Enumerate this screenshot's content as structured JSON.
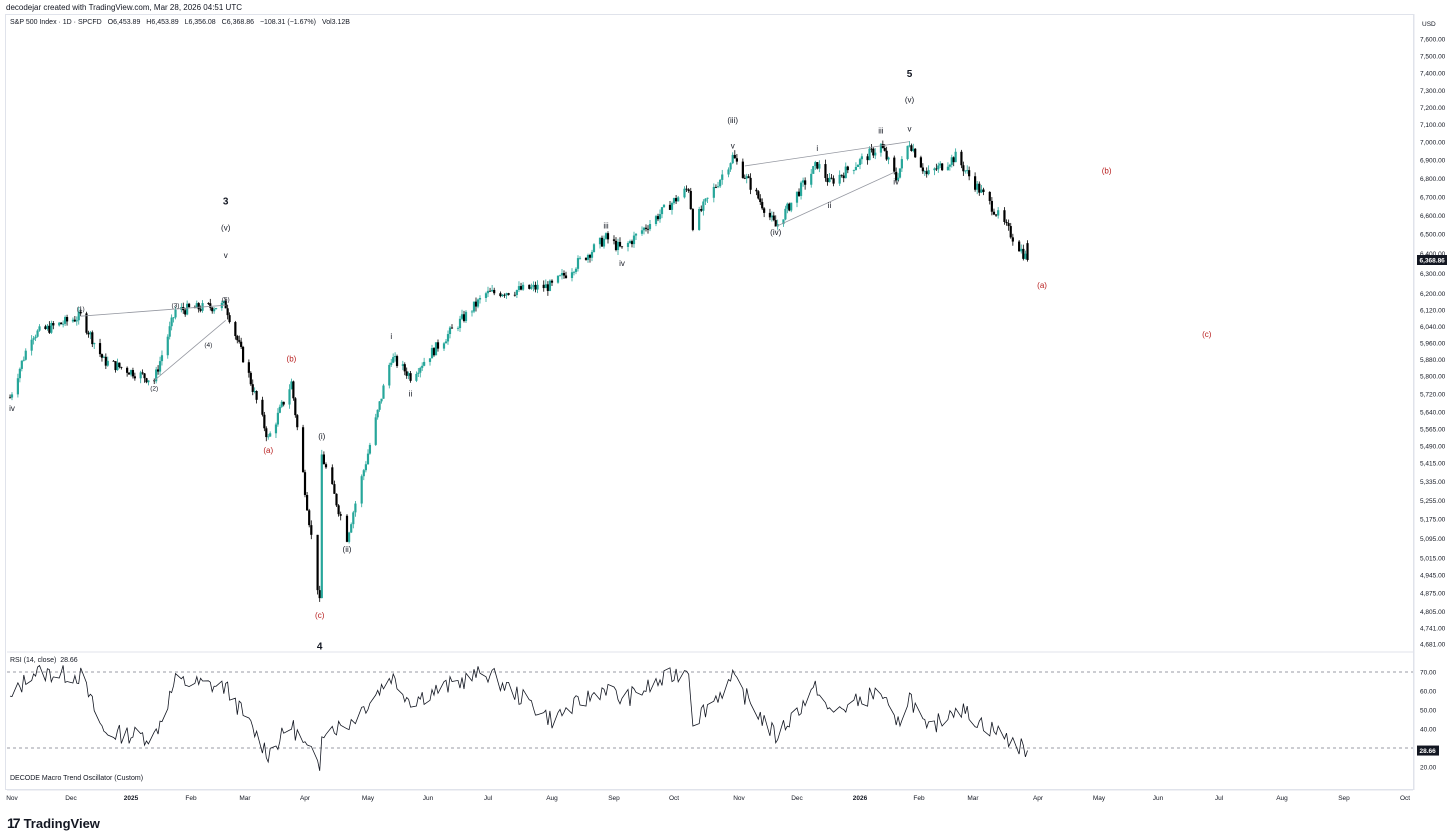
{
  "header": {
    "credit": "decodejar created with TradingView.com, Mar 28, 2026 04:51 UTC"
  },
  "legend": {
    "symbol": "S&P 500 Index · 1D · SPCFD",
    "open": "O6,453.89",
    "high": "H6,453.89",
    "low": "L6,356.08",
    "close": "C6,368.86",
    "change": "−108.31 (−1.67%)",
    "volume": "Vol3.12B"
  },
  "price_axis": {
    "currency": "USD",
    "ticks": [
      "7,600.00",
      "7,500.00",
      "7,400.00",
      "7,300.00",
      "7,200.00",
      "7,100.00",
      "7,000.00",
      "6,900.00",
      "6,800.00",
      "6,700.00",
      "6,600.00",
      "6,500.00",
      "6,400.00",
      "6,300.00",
      "6,200.00",
      "6,120.00",
      "6,040.00",
      "5,960.00",
      "5,880.00",
      "5,800.00",
      "5,720.00",
      "5,640.00",
      "5,565.00",
      "5,490.00",
      "5,415.00",
      "5,335.00",
      "5,255.00",
      "5,175.00",
      "5,095.00",
      "5,015.00",
      "4,945.00",
      "4,875.00",
      "4,805.00",
      "4,741.00",
      "4,681.00"
    ],
    "last_price_label": "6,368.86"
  },
  "rsi": {
    "label": "RSI (14, close)",
    "value": "28.66",
    "ticks": [
      "70.00",
      "60.00",
      "50.00",
      "40.00",
      "20.00"
    ],
    "last_label": "28.66"
  },
  "oscillator": {
    "label": "DECODE Macro Trend Oscillator (Custom)"
  },
  "time_axis": {
    "labels": [
      "Nov",
      "Dec",
      "2025",
      "Feb",
      "Mar",
      "Apr",
      "May",
      "Jun",
      "Jul",
      "Aug",
      "Sep",
      "Oct",
      "Nov",
      "Dec",
      "2026",
      "Feb",
      "Mar",
      "Apr",
      "May",
      "Jun",
      "Jul",
      "Aug",
      "Sep",
      "Oct"
    ]
  },
  "wave_labels": [
    "iv",
    "(1)",
    "(2)",
    "(3)",
    "(4)",
    "(5)",
    "v",
    "(v)",
    "3",
    "(b)",
    "(a)",
    "(i)",
    "(ii)",
    "(c)",
    "4",
    "i",
    "ii",
    "iii",
    "iv",
    "v",
    "(iii)",
    "(iv)",
    "i",
    "ii",
    "iii",
    "iv",
    "v",
    "(v)",
    "5",
    "(a)",
    "(b)",
    "(c)"
  ],
  "colors": {
    "up": "#26a69a",
    "down": "#000000",
    "corrective": "#b71c1c",
    "grid": "#e0e3eb",
    "text": "#131722"
  },
  "footer": {
    "brand": "TradingView"
  },
  "chart_data": {
    "type": "candlestick",
    "title": "S&P 500 Index · 1D · SPCFD",
    "ylabel": "USD",
    "ylim": [
      4681,
      7600
    ],
    "x_range": [
      "2024-11-01",
      "2026-10-15"
    ],
    "trend_path": [
      [
        "2024-10-31",
        5705
      ],
      [
        "2024-11-11",
        6000
      ],
      [
        "2024-12-06",
        6090
      ],
      [
        "2024-12-18",
        5872
      ],
      [
        "2025-01-13",
        5780
      ],
      [
        "2025-01-24",
        6118
      ],
      [
        "2025-02-19",
        6144
      ],
      [
        "2025-03-13",
        5520
      ],
      [
        "2025-03-25",
        5770
      ],
      [
        "2025-04-08",
        4835
      ],
      [
        "2025-04-09",
        5450
      ],
      [
        "2025-04-21",
        5100
      ],
      [
        "2025-05-13",
        5890
      ],
      [
        "2025-05-23",
        5800
      ],
      [
        "2025-06-30",
        6200
      ],
      [
        "2025-08-01",
        6240
      ],
      [
        "2025-08-28",
        6480
      ],
      [
        "2025-09-05",
        6420
      ],
      [
        "2025-10-08",
        6750
      ],
      [
        "2025-10-10",
        6550
      ],
      [
        "2025-10-29",
        6920
      ],
      [
        "2025-11-20",
        6540
      ],
      [
        "2025-12-11",
        6880
      ],
      [
        "2025-12-17",
        6780
      ],
      [
        "2026-01-12",
        6980
      ],
      [
        "2026-01-20",
        6800
      ],
      [
        "2026-01-27",
        7002
      ],
      [
        "2026-02-05",
        6820
      ],
      [
        "2026-02-20",
        6920
      ],
      [
        "2026-03-10",
        6650
      ],
      [
        "2026-03-27",
        6369
      ]
    ],
    "last_bar": {
      "date": "2026-03-27",
      "open": 6453.89,
      "high": 6453.89,
      "low": 6356.08,
      "close": 6368.86
    },
    "rsi": {
      "period": 14,
      "last": 28.66,
      "levels": [
        70,
        30
      ],
      "path": [
        [
          "2024-10-31",
          55
        ],
        [
          "2024-11-11",
          70
        ],
        [
          "2024-12-06",
          68
        ],
        [
          "2024-12-18",
          38
        ],
        [
          "2025-01-13",
          36
        ],
        [
          "2025-01-24",
          65
        ],
        [
          "2025-02-19",
          62
        ],
        [
          "2025-03-13",
          27
        ],
        [
          "2025-03-25",
          42
        ],
        [
          "2025-04-08",
          20
        ],
        [
          "2025-04-09",
          40
        ],
        [
          "2025-04-21",
          42
        ],
        [
          "2025-05-13",
          68
        ],
        [
          "2025-05-23",
          55
        ],
        [
          "2025-06-30",
          70
        ],
        [
          "2025-08-01",
          45
        ],
        [
          "2025-08-28",
          62
        ],
        [
          "2025-09-05",
          55
        ],
        [
          "2025-10-08",
          72
        ],
        [
          "2025-10-10",
          44
        ],
        [
          "2025-10-29",
          66
        ],
        [
          "2025-11-20",
          36
        ],
        [
          "2025-12-11",
          62
        ],
        [
          "2025-12-17",
          48
        ],
        [
          "2026-01-12",
          60
        ],
        [
          "2026-01-20",
          40
        ],
        [
          "2026-01-27",
          58
        ],
        [
          "2026-02-05",
          38
        ],
        [
          "2026-02-20",
          52
        ],
        [
          "2026-03-10",
          40
        ],
        [
          "2026-03-27",
          28.66
        ]
      ]
    },
    "triangles": [
      {
        "upper": [
          [
            "2024-12-06",
            6090
          ],
          [
            "2025-02-19",
            6144
          ]
        ],
        "lower": [
          [
            "2025-01-13",
            5780
          ],
          [
            "2025-02-19",
            6070
          ]
        ]
      },
      {
        "upper": [
          [
            "2025-11-04",
            6870
          ],
          [
            "2026-01-27",
            7002
          ]
        ],
        "lower": [
          [
            "2025-11-20",
            6540
          ],
          [
            "2026-01-20",
            6840
          ]
        ]
      }
    ],
    "wave_points": [
      {
        "t": "iv",
        "d": "2024-11-01",
        "p": 5690,
        "pos": "below",
        "c": "black"
      },
      {
        "t": "(1)",
        "d": "2024-12-06",
        "p": 6100,
        "pos": "above",
        "c": "black",
        "small": true
      },
      {
        "t": "(2)",
        "d": "2025-01-13",
        "p": 5780,
        "pos": "below",
        "c": "black",
        "small": true
      },
      {
        "t": "(3)",
        "d": "2025-01-24",
        "p": 6118,
        "pos": "above",
        "c": "black",
        "small": true
      },
      {
        "t": "(4)",
        "d": "2025-02-10",
        "p": 5990,
        "pos": "below",
        "c": "black",
        "small": true
      },
      {
        "t": "(5)",
        "d": "2025-02-19",
        "p": 6147,
        "pos": "above",
        "c": "black",
        "small": true
      },
      {
        "t": "v",
        "d": "2025-02-19",
        "p": 6380,
        "pos": "label",
        "c": "black"
      },
      {
        "t": "(v)",
        "d": "2025-02-19",
        "p": 6520,
        "pos": "label",
        "c": "black"
      },
      {
        "t": "3",
        "d": "2025-02-19",
        "p": 6660,
        "pos": "label",
        "c": "black",
        "big": true
      },
      {
        "t": "(b)",
        "d": "2025-03-25",
        "p": 5870,
        "pos": "label",
        "c": "red"
      },
      {
        "t": "(a)",
        "d": "2025-03-13",
        "p": 5460,
        "pos": "label",
        "c": "red"
      },
      {
        "t": "(i)",
        "d": "2025-04-09",
        "p": 5520,
        "pos": "label",
        "c": "black"
      },
      {
        "t": "(ii)",
        "d": "2025-04-21",
        "p": 5040,
        "pos": "label",
        "c": "black"
      },
      {
        "t": "(c)",
        "d": "2025-04-08",
        "p": 4780,
        "pos": "label",
        "c": "red"
      },
      {
        "t": "4",
        "d": "2025-04-08",
        "p": 4660,
        "pos": "label",
        "c": "black",
        "big": true
      },
      {
        "t": "i",
        "d": "2025-05-13",
        "p": 5980,
        "pos": "label",
        "c": "black"
      },
      {
        "t": "ii",
        "d": "2025-05-23",
        "p": 5710,
        "pos": "label",
        "c": "black"
      },
      {
        "t": "iii",
        "d": "2025-08-28",
        "p": 6530,
        "pos": "label",
        "c": "black"
      },
      {
        "t": "iv",
        "d": "2025-09-05",
        "p": 6340,
        "pos": "label",
        "c": "black"
      },
      {
        "t": "v",
        "d": "2025-10-29",
        "p": 6965,
        "pos": "label",
        "c": "black"
      },
      {
        "t": "(iii)",
        "d": "2025-10-29",
        "p": 7110,
        "pos": "label",
        "c": "black"
      },
      {
        "t": "(iv)",
        "d": "2025-11-20",
        "p": 6495,
        "pos": "label",
        "c": "black"
      },
      {
        "t": "i",
        "d": "2025-12-11",
        "p": 6950,
        "pos": "label",
        "c": "black"
      },
      {
        "t": "ii",
        "d": "2025-12-17",
        "p": 6640,
        "pos": "label",
        "c": "black"
      },
      {
        "t": "iii",
        "d": "2026-01-12",
        "p": 7050,
        "pos": "label",
        "c": "black"
      },
      {
        "t": "iv",
        "d": "2026-01-20",
        "p": 6770,
        "pos": "label",
        "c": "black"
      },
      {
        "t": "v",
        "d": "2026-01-27",
        "p": 7060,
        "pos": "label",
        "c": "black"
      },
      {
        "t": "(v)",
        "d": "2026-01-27",
        "p": 7230,
        "pos": "label",
        "c": "black"
      },
      {
        "t": "5",
        "d": "2026-01-27",
        "p": 7380,
        "pos": "label",
        "c": "black",
        "big": true
      },
      {
        "t": "(a)",
        "d": "2026-04-03",
        "p": 6230,
        "pos": "label",
        "c": "red"
      },
      {
        "t": "(b)",
        "d": "2026-05-05",
        "p": 6830,
        "pos": "label",
        "c": "red"
      },
      {
        "t": "(c)",
        "d": "2026-06-25",
        "p": 5990,
        "pos": "label",
        "c": "red"
      }
    ]
  }
}
